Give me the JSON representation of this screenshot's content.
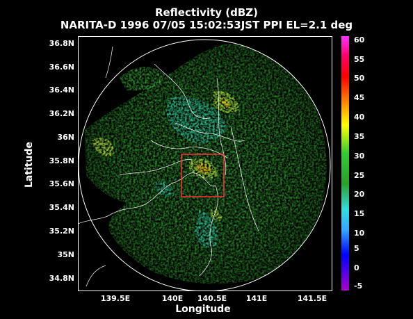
{
  "title": {
    "line1": "Reflectivity (dBZ)",
    "line2": "NARITA-D 1996 07/05 15:02:53JST PPI EL=2.1 deg"
  },
  "axes": {
    "xlabel": "Longitude",
    "ylabel": "Latitude",
    "xticks": [
      "139.5E",
      "140E",
      "140.5E",
      "141E",
      "141.5E"
    ],
    "yticks": [
      "36.8N",
      "36.6N",
      "36.4N",
      "36.2N",
      "36N",
      "35.8N",
      "35.6N",
      "35.4N",
      "35.2N",
      "35N",
      "34.8N"
    ]
  },
  "colorbar": {
    "ticks": [
      "60",
      "55",
      "50",
      "45",
      "40",
      "35",
      "30",
      "25",
      "20",
      "15",
      "10",
      "5",
      "0",
      "-5"
    ],
    "colors": {
      "high": "#ff33ff",
      "red": "#ff0000",
      "orange": "#ff9900",
      "yellow": "#ffff00",
      "green": "#33cc33",
      "cyan": "#33dddd",
      "blue": "#0000ff",
      "purple": "#aa00cc"
    }
  },
  "map": {
    "background": "#000000",
    "echo_colors": [
      "#2e9a2e",
      "#3fc23f",
      "#7fe03a",
      "#c8f040",
      "#2fd0c8"
    ],
    "range_ring_color": "#ffffff",
    "box_color": "#ff3333"
  }
}
